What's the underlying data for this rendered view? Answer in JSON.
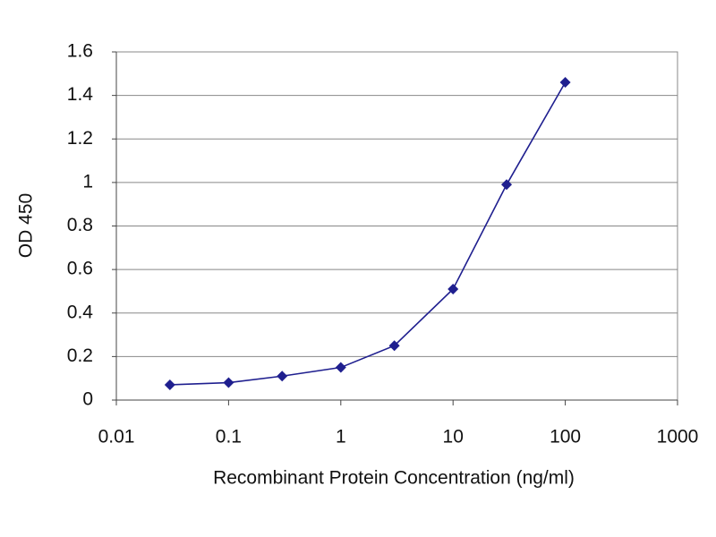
{
  "chart_data": {
    "type": "line",
    "x_label": "Recombinant Protein Concentration (ng/ml)",
    "y_label": "OD 450",
    "x": [
      0.03,
      0.1,
      0.3,
      1,
      3,
      10,
      30,
      100
    ],
    "values": [
      0.07,
      0.08,
      0.11,
      0.15,
      0.25,
      0.51,
      0.99,
      1.46
    ],
    "color": "#1f1f8f",
    "xscale": "log",
    "xlim": [
      0.01,
      1000
    ],
    "xticks": [
      0.01,
      0.1,
      1,
      10,
      100,
      1000
    ],
    "ylim": [
      0,
      1.6
    ],
    "yticks": [
      0,
      0.2,
      0.4,
      0.6,
      0.8,
      1,
      1.2,
      1.4,
      1.6
    ],
    "grid": true
  }
}
